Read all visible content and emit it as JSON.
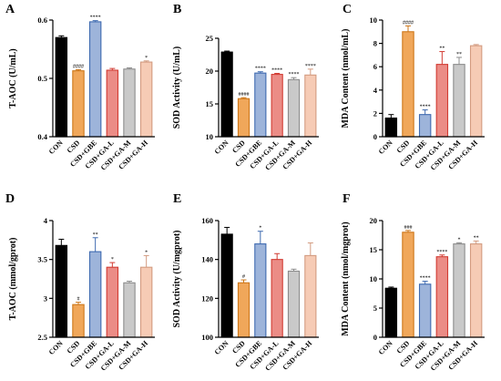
{
  "chart_data": [
    {
      "panel": "A",
      "type": "bar",
      "ylabel": "T-AOC (U/mL)",
      "ylim": [
        0.4,
        0.6
      ],
      "yticks": [
        0.4,
        0.5,
        0.6
      ],
      "categories": [
        "CON",
        "CSD",
        "CSD+GBE",
        "CSD+GA-L",
        "CSD+GA-M",
        "CSD+GA-H"
      ],
      "values": [
        0.57,
        0.513,
        0.597,
        0.514,
        0.516,
        0.528
      ],
      "errors": [
        0.003,
        0.002,
        0.002,
        0.003,
        0.002,
        0.002
      ],
      "annotations": [
        "",
        "####",
        "****",
        "",
        "",
        "*"
      ]
    },
    {
      "panel": "B",
      "type": "bar",
      "ylabel": "SOD Activity (U/mL)",
      "ylim": [
        10,
        25
      ],
      "yticks": [
        10,
        15,
        20,
        25
      ],
      "categories": [
        "CON",
        "CSD",
        "CSD+GBE",
        "CSD+GA-L",
        "CSD+GA-M",
        "CSD+GA-H"
      ],
      "values": [
        22.9,
        15.8,
        19.7,
        19.5,
        18.7,
        19.4
      ],
      "errors": [
        0.15,
        0.15,
        0.2,
        0.15,
        0.3,
        0.9
      ],
      "annotations": [
        "",
        "####",
        "****",
        "****",
        "****",
        "****"
      ]
    },
    {
      "panel": "C",
      "type": "bar",
      "ylabel": "MDA Content (nmol/mL)",
      "ylim": [
        0,
        10
      ],
      "yticks": [
        0,
        2,
        4,
        6,
        8,
        10
      ],
      "categories": [
        "CON",
        "CSD",
        "CSD+GBE",
        "CSD+GA-L",
        "CSD+GA-M",
        "CSD+GA-H"
      ],
      "values": [
        1.6,
        9.0,
        1.9,
        6.2,
        6.2,
        7.8
      ],
      "errors": [
        0.3,
        0.5,
        0.4,
        1.1,
        0.6,
        0.1
      ],
      "annotations": [
        "",
        "####",
        "****",
        "**",
        "**",
        ""
      ]
    },
    {
      "panel": "D",
      "type": "bar",
      "ylabel": "T-AOC (mmol/gprot)",
      "ylim": [
        2.5,
        4.0
      ],
      "yticks": [
        2.5,
        3.0,
        3.5,
        4.0
      ],
      "categories": [
        "CON",
        "CSD",
        "CSD+GBE",
        "CSD+GA-L",
        "CSD+GA-M",
        "CSD+GA-H"
      ],
      "values": [
        3.68,
        2.92,
        3.6,
        3.4,
        3.2,
        3.4
      ],
      "errors": [
        0.08,
        0.03,
        0.18,
        0.06,
        0.02,
        0.15
      ],
      "annotations": [
        "",
        "#",
        "**",
        "*",
        "",
        "*"
      ]
    },
    {
      "panel": "E",
      "type": "bar",
      "ylabel": "SOD Activity (U/mgprot)",
      "ylim": [
        100,
        160
      ],
      "yticks": [
        100,
        120,
        140,
        160
      ],
      "categories": [
        "CON",
        "CSD",
        "CSD+GBE",
        "CSD+GA-L",
        "CSD+GA-M",
        "CSD+GA-H"
      ],
      "values": [
        153,
        128,
        148,
        140,
        134,
        142
      ],
      "errors": [
        3.5,
        1.5,
        6.5,
        3.0,
        1.0,
        6.5
      ],
      "annotations": [
        "",
        "#",
        "*",
        "",
        "",
        ""
      ]
    },
    {
      "panel": "F",
      "type": "bar",
      "ylabel": "MDA Content (nmol/mgprot)",
      "ylim": [
        0,
        20
      ],
      "yticks": [
        0,
        5,
        10,
        15,
        20
      ],
      "categories": [
        "CON",
        "CSD",
        "CSD+GBE",
        "CSD+GA-L",
        "CSD+GA-M",
        "CSD+GA-H"
      ],
      "values": [
        8.4,
        18.0,
        9.1,
        13.8,
        16.0,
        16.0
      ],
      "errors": [
        0.2,
        0.3,
        0.5,
        0.3,
        0.2,
        0.5
      ],
      "annotations": [
        "",
        "###",
        "****",
        "****",
        "*",
        "**"
      ]
    }
  ],
  "colors": {
    "fill": [
      "#000000",
      "#f0a75a",
      "#9db4da",
      "#eb8c86",
      "#c9c9c9",
      "#f6cbb5"
    ],
    "stroke": [
      "#000000",
      "#cd7618",
      "#3e6ab0",
      "#d23b32",
      "#8c8c8c",
      "#d39b80"
    ]
  }
}
